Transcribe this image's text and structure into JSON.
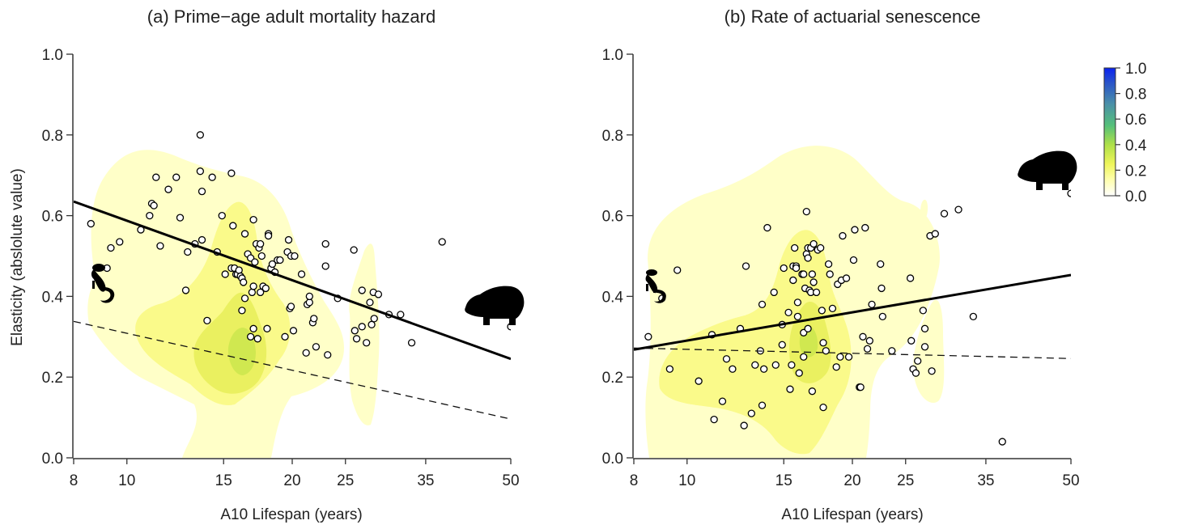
{
  "chart_data": [
    {
      "type": "scatter",
      "title": "(a) Prime−age adult mortality hazard",
      "xlabel": "A10 Lifespan (years)",
      "ylabel": "Elasticity (abslolute value)",
      "x_scale": "log",
      "xlim": [
        8,
        50
      ],
      "ylim": [
        0,
        1
      ],
      "x_ticks": [
        "8",
        "10",
        "15",
        "20",
        "25",
        "35",
        "50"
      ],
      "x_tick_values": [
        8,
        10,
        15,
        20,
        25,
        35,
        50
      ],
      "y_ticks": [
        "0.0",
        "0.2",
        "0.4",
        "0.6",
        "0.8",
        "1.0"
      ],
      "y_tick_values": [
        0,
        0.2,
        0.4,
        0.6,
        0.8,
        1.0
      ],
      "points": [
        [
          8.6,
          0.58
        ],
        [
          9.35,
          0.52
        ],
        [
          9.7,
          0.535
        ],
        [
          9.2,
          0.47
        ],
        [
          10.6,
          0.565
        ],
        [
          11.1,
          0.63
        ],
        [
          11.0,
          0.6
        ],
        [
          11.3,
          0.695
        ],
        [
          11.2,
          0.625
        ],
        [
          11.5,
          0.525
        ],
        [
          11.9,
          0.665
        ],
        [
          12.3,
          0.695
        ],
        [
          12.5,
          0.595
        ],
        [
          12.9,
          0.51
        ],
        [
          12.8,
          0.415
        ],
        [
          13.3,
          0.53
        ],
        [
          13.6,
          0.8
        ],
        [
          13.6,
          0.71
        ],
        [
          13.7,
          0.66
        ],
        [
          13.7,
          0.54
        ],
        [
          14.0,
          0.34
        ],
        [
          14.3,
          0.695
        ],
        [
          14.6,
          0.51
        ],
        [
          14.9,
          0.6
        ],
        [
          15.1,
          0.455
        ],
        [
          15.5,
          0.705
        ],
        [
          15.6,
          0.575
        ],
        [
          15.5,
          0.47
        ],
        [
          15.7,
          0.47
        ],
        [
          15.8,
          0.455
        ],
        [
          15.9,
          0.455
        ],
        [
          16.0,
          0.465
        ],
        [
          16.1,
          0.45
        ],
        [
          16.2,
          0.445
        ],
        [
          16.3,
          0.435
        ],
        [
          16.2,
          0.365
        ],
        [
          16.4,
          0.555
        ],
        [
          16.4,
          0.395
        ],
        [
          16.6,
          0.505
        ],
        [
          16.8,
          0.3
        ],
        [
          16.8,
          0.495
        ],
        [
          16.9,
          0.41
        ],
        [
          17.0,
          0.425
        ],
        [
          17.0,
          0.59
        ],
        [
          17.0,
          0.32
        ],
        [
          17.1,
          0.485
        ],
        [
          17.2,
          0.53
        ],
        [
          17.3,
          0.295
        ],
        [
          17.4,
          0.52
        ],
        [
          17.5,
          0.41
        ],
        [
          17.5,
          0.53
        ],
        [
          17.6,
          0.5
        ],
        [
          17.7,
          0.425
        ],
        [
          17.9,
          0.42
        ],
        [
          18.0,
          0.32
        ],
        [
          18.1,
          0.555
        ],
        [
          18.1,
          0.55
        ],
        [
          18.3,
          0.47
        ],
        [
          18.4,
          0.48
        ],
        [
          18.6,
          0.46
        ],
        [
          18.8,
          0.49
        ],
        [
          19.0,
          0.49
        ],
        [
          19.4,
          0.3
        ],
        [
          19.6,
          0.51
        ],
        [
          19.7,
          0.54
        ],
        [
          19.8,
          0.37
        ],
        [
          19.9,
          0.375
        ],
        [
          19.9,
          0.5
        ],
        [
          20.1,
          0.315
        ],
        [
          20.2,
          0.5
        ],
        [
          20.8,
          0.455
        ],
        [
          21.2,
          0.26
        ],
        [
          21.3,
          0.38
        ],
        [
          21.5,
          0.385
        ],
        [
          21.5,
          0.4
        ],
        [
          21.8,
          0.335
        ],
        [
          21.9,
          0.345
        ],
        [
          22.1,
          0.275
        ],
        [
          23.0,
          0.475
        ],
        [
          23.0,
          0.53
        ],
        [
          23.2,
          0.255
        ],
        [
          24.2,
          0.395
        ],
        [
          25.9,
          0.515
        ],
        [
          26.2,
          0.295
        ],
        [
          26.0,
          0.315
        ],
        [
          26.8,
          0.415
        ],
        [
          26.8,
          0.325
        ],
        [
          27.3,
          0.285
        ],
        [
          27.7,
          0.385
        ],
        [
          27.9,
          0.33
        ],
        [
          28.1,
          0.41
        ],
        [
          28.2,
          0.345
        ],
        [
          28.7,
          0.405
        ],
        [
          30.0,
          0.355
        ],
        [
          31.5,
          0.355
        ],
        [
          33.0,
          0.285
        ],
        [
          37.5,
          0.535
        ],
        [
          50.0,
          0.325
        ]
      ],
      "fit_solid": {
        "x": [
          8,
          50
        ],
        "y": [
          0.635,
          0.245
        ]
      },
      "fit_dashed": {
        "x": [
          8,
          50
        ],
        "y": [
          0.338,
          0.096
        ]
      },
      "icons": [
        "lemur-silhouette-icon",
        "hippo-silhouette-icon"
      ]
    },
    {
      "type": "scatter",
      "title": "(b) Rate of actuarial senescence",
      "xlabel": "A10 Lifespan (years)",
      "ylabel": "",
      "x_scale": "log",
      "xlim": [
        8,
        50
      ],
      "ylim": [
        0,
        1
      ],
      "x_ticks": [
        "8",
        "10",
        "15",
        "20",
        "25",
        "35",
        "50"
      ],
      "x_tick_values": [
        8,
        10,
        15,
        20,
        25,
        35,
        50
      ],
      "y_ticks": [
        "0.0",
        "0.2",
        "0.4",
        "0.6",
        "0.8",
        "1.0"
      ],
      "y_tick_values": [
        0,
        0.2,
        0.4,
        0.6,
        0.8,
        1.0
      ],
      "points": [
        [
          8.5,
          0.3
        ],
        [
          9.0,
          0.395
        ],
        [
          9.6,
          0.465
        ],
        [
          9.3,
          0.22
        ],
        [
          10.5,
          0.19
        ],
        [
          11.1,
          0.305
        ],
        [
          11.2,
          0.095
        ],
        [
          11.6,
          0.14
        ],
        [
          11.8,
          0.245
        ],
        [
          12.1,
          0.22
        ],
        [
          12.5,
          0.32
        ],
        [
          12.7,
          0.08
        ],
        [
          12.8,
          0.475
        ],
        [
          13.1,
          0.11
        ],
        [
          13.3,
          0.23
        ],
        [
          13.6,
          0.265
        ],
        [
          13.7,
          0.13
        ],
        [
          13.7,
          0.38
        ],
        [
          13.8,
          0.22
        ],
        [
          14.0,
          0.57
        ],
        [
          14.4,
          0.41
        ],
        [
          14.5,
          0.23
        ],
        [
          14.9,
          0.28
        ],
        [
          14.9,
          0.33
        ],
        [
          15.0,
          0.47
        ],
        [
          15.3,
          0.36
        ],
        [
          15.4,
          0.17
        ],
        [
          15.5,
          0.23
        ],
        [
          15.6,
          0.44
        ],
        [
          15.6,
          0.475
        ],
        [
          15.7,
          0.52
        ],
        [
          15.8,
          0.475
        ],
        [
          15.8,
          0.47
        ],
        [
          15.9,
          0.385
        ],
        [
          15.9,
          0.35
        ],
        [
          16.0,
          0.21
        ],
        [
          16.2,
          0.455
        ],
        [
          16.3,
          0.455
        ],
        [
          16.3,
          0.31
        ],
        [
          16.3,
          0.25
        ],
        [
          16.4,
          0.42
        ],
        [
          16.5,
          0.61
        ],
        [
          16.5,
          0.505
        ],
        [
          16.6,
          0.52
        ],
        [
          16.6,
          0.495
        ],
        [
          16.6,
          0.32
        ],
        [
          16.7,
          0.415
        ],
        [
          16.8,
          0.41
        ],
        [
          16.8,
          0.52
        ],
        [
          16.9,
          0.165
        ],
        [
          16.9,
          0.455
        ],
        [
          17.0,
          0.435
        ],
        [
          17.0,
          0.53
        ],
        [
          17.2,
          0.41
        ],
        [
          17.3,
          0.515
        ],
        [
          17.5,
          0.52
        ],
        [
          17.6,
          0.365
        ],
        [
          17.7,
          0.285
        ],
        [
          17.7,
          0.125
        ],
        [
          17.9,
          0.265
        ],
        [
          18.1,
          0.48
        ],
        [
          18.2,
          0.455
        ],
        [
          18.4,
          0.37
        ],
        [
          18.7,
          0.225
        ],
        [
          18.8,
          0.43
        ],
        [
          19.0,
          0.25
        ],
        [
          19.1,
          0.44
        ],
        [
          19.2,
          0.55
        ],
        [
          19.5,
          0.445
        ],
        [
          19.7,
          0.25
        ],
        [
          20.1,
          0.49
        ],
        [
          20.2,
          0.565
        ],
        [
          20.6,
          0.175
        ],
        [
          20.7,
          0.175
        ],
        [
          20.9,
          0.3
        ],
        [
          21.1,
          0.57
        ],
        [
          21.3,
          0.27
        ],
        [
          21.5,
          0.29
        ],
        [
          21.7,
          0.38
        ],
        [
          22.5,
          0.48
        ],
        [
          22.6,
          0.42
        ],
        [
          22.7,
          0.35
        ],
        [
          23.6,
          0.265
        ],
        [
          25.5,
          0.445
        ],
        [
          25.6,
          0.29
        ],
        [
          25.8,
          0.22
        ],
        [
          26.1,
          0.21
        ],
        [
          26.3,
          0.24
        ],
        [
          26.9,
          0.365
        ],
        [
          27.1,
          0.32
        ],
        [
          27.1,
          0.275
        ],
        [
          27.7,
          0.55
        ],
        [
          27.9,
          0.215
        ],
        [
          28.3,
          0.555
        ],
        [
          29.4,
          0.605
        ],
        [
          31.2,
          0.615
        ],
        [
          33.2,
          0.35
        ],
        [
          37.5,
          0.04
        ],
        [
          50.0,
          0.655
        ]
      ],
      "fit_solid": {
        "x": [
          8,
          50
        ],
        "y": [
          0.268,
          0.453
        ]
      },
      "fit_dashed": {
        "x": [
          8,
          50
        ],
        "y": [
          0.272,
          0.246
        ]
      },
      "icons": [
        "lemur-silhouette-icon",
        "hippo-silhouette-icon"
      ]
    }
  ],
  "colorbar": {
    "ticks": [
      "0.0",
      "0.2",
      "0.4",
      "0.6",
      "0.8",
      "1.0"
    ],
    "tick_values": [
      0,
      0.2,
      0.4,
      0.6,
      0.8,
      1.0
    ],
    "colors": [
      "#ffffff",
      "#ffffb0",
      "#eef55a",
      "#aee048",
      "#55c07a",
      "#4a8fa8",
      "#2a55c8",
      "#0a22f0"
    ]
  },
  "density_colors": {
    "level1": "#ffffc8",
    "level2": "#fafa8a",
    "level3": "#eaf060",
    "level4": "#d0e850"
  }
}
